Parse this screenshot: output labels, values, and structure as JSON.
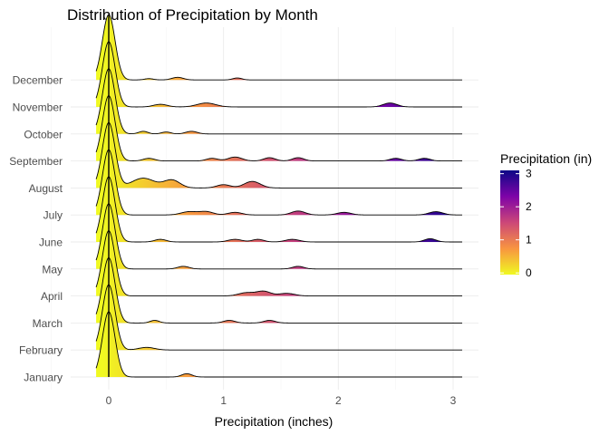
{
  "chart_data": {
    "type": "ridgeline",
    "title": "Distribution of Precipitation by Month",
    "xlabel": "Precipitation (inches)",
    "ylabel": "",
    "xlim": [
      -0.2,
      3.05
    ],
    "x_ticks": [
      0,
      1,
      2,
      3
    ],
    "categories": [
      "January",
      "February",
      "March",
      "April",
      "May",
      "June",
      "July",
      "August",
      "September",
      "October",
      "November",
      "December"
    ],
    "series": [
      {
        "name": "January",
        "peak": [
          0.0,
          1.0,
          0.055
        ],
        "bumps": [
          [
            0.68,
            0.05,
            0.045
          ]
        ]
      },
      {
        "name": "February",
        "peak": [
          0.0,
          1.0,
          0.055
        ],
        "bumps": [
          [
            0.33,
            0.04,
            0.07
          ]
        ]
      },
      {
        "name": "March",
        "peak": [
          0.0,
          1.0,
          0.055
        ],
        "bumps": [
          [
            0.4,
            0.04,
            0.04
          ],
          [
            1.05,
            0.04,
            0.05
          ],
          [
            1.4,
            0.04,
            0.05
          ]
        ]
      },
      {
        "name": "April",
        "peak": [
          0.0,
          1.0,
          0.055
        ],
        "bumps": [
          [
            1.2,
            0.05,
            0.07
          ],
          [
            1.35,
            0.07,
            0.06
          ],
          [
            1.55,
            0.04,
            0.07
          ]
        ]
      },
      {
        "name": "May",
        "peak": [
          0.0,
          1.0,
          0.055
        ],
        "bumps": [
          [
            0.65,
            0.04,
            0.05
          ],
          [
            1.65,
            0.04,
            0.05
          ]
        ]
      },
      {
        "name": "June",
        "peak": [
          0.0,
          1.0,
          0.055
        ],
        "bumps": [
          [
            0.45,
            0.04,
            0.05
          ],
          [
            1.1,
            0.04,
            0.06
          ],
          [
            1.3,
            0.04,
            0.05
          ],
          [
            1.6,
            0.04,
            0.06
          ],
          [
            2.8,
            0.05,
            0.05
          ]
        ]
      },
      {
        "name": "July",
        "peak": [
          0.0,
          1.0,
          0.055
        ],
        "bumps": [
          [
            0.7,
            0.05,
            0.07
          ],
          [
            0.85,
            0.05,
            0.06
          ],
          [
            1.1,
            0.04,
            0.06
          ],
          [
            1.65,
            0.06,
            0.06
          ],
          [
            2.05,
            0.04,
            0.06
          ],
          [
            2.85,
            0.05,
            0.06
          ]
        ]
      },
      {
        "name": "August",
        "peak": [
          0.0,
          1.0,
          0.055
        ],
        "bumps": [
          [
            0.3,
            0.15,
            0.1
          ],
          [
            0.55,
            0.12,
            0.07
          ],
          [
            1.0,
            0.05,
            0.06
          ],
          [
            1.25,
            0.1,
            0.07
          ]
        ]
      },
      {
        "name": "September",
        "peak": [
          0.0,
          1.0,
          0.055
        ],
        "bumps": [
          [
            0.35,
            0.04,
            0.05
          ],
          [
            0.9,
            0.04,
            0.05
          ],
          [
            1.1,
            0.06,
            0.06
          ],
          [
            1.4,
            0.05,
            0.05
          ],
          [
            1.65,
            0.05,
            0.05
          ],
          [
            2.5,
            0.04,
            0.05
          ],
          [
            2.75,
            0.04,
            0.05
          ]
        ]
      },
      {
        "name": "October",
        "peak": [
          0.0,
          1.0,
          0.055
        ],
        "bumps": [
          [
            0.3,
            0.04,
            0.04
          ],
          [
            0.5,
            0.03,
            0.04
          ],
          [
            0.72,
            0.04,
            0.05
          ]
        ]
      },
      {
        "name": "November",
        "peak": [
          0.0,
          1.0,
          0.055
        ],
        "bumps": [
          [
            0.45,
            0.04,
            0.06
          ],
          [
            0.85,
            0.06,
            0.08
          ],
          [
            2.45,
            0.06,
            0.06
          ]
        ]
      },
      {
        "name": "December",
        "peak": [
          0.0,
          1.0,
          0.055
        ],
        "bumps": [
          [
            0.35,
            0.02,
            0.04
          ],
          [
            0.6,
            0.04,
            0.05
          ],
          [
            1.12,
            0.03,
            0.04
          ]
        ]
      }
    ],
    "grid": true,
    "legend": {
      "title": "Precipitation (in)",
      "placement": "right",
      "ticks": [
        0,
        1,
        2,
        3
      ],
      "range": [
        -0.05,
        3.1
      ]
    },
    "colors": {
      "scale": [
        "#f0f921",
        "#f89540",
        "#cc4778",
        "#7e03a8",
        "#0d0887"
      ],
      "outline": "#000000",
      "grid": "#ebebeb"
    }
  }
}
